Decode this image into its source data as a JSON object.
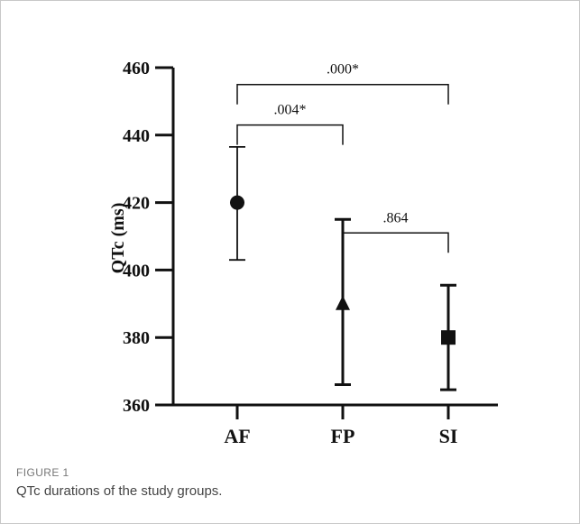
{
  "chart_data": {
    "type": "scatter",
    "title": "",
    "xlabel": "",
    "ylabel": "QTc (ms)",
    "ylim": [
      360,
      460
    ],
    "yticks": [
      "360",
      "380",
      "400",
      "420",
      "440",
      "460"
    ],
    "categories": [
      "AF",
      "FP",
      "SI"
    ],
    "series": [
      {
        "values": [
          420,
          390,
          380
        ],
        "error_low": [
          403,
          366,
          364.5
        ],
        "error_high": [
          436.5,
          415,
          395.5
        ],
        "markers": [
          "circle",
          "triangle",
          "square"
        ]
      }
    ],
    "annotations": [
      {
        "from": "AF",
        "to": "SI",
        "label": ".000*",
        "level": 455
      },
      {
        "from": "AF",
        "to": "FP",
        "label": ".004*",
        "level": 443
      },
      {
        "from": "FP",
        "to": "SI",
        "label": ".864",
        "level": 411
      }
    ],
    "grid": false,
    "legend": "none"
  },
  "caption": {
    "label": "FIGURE 1",
    "text": "QTc durations of the study groups."
  }
}
